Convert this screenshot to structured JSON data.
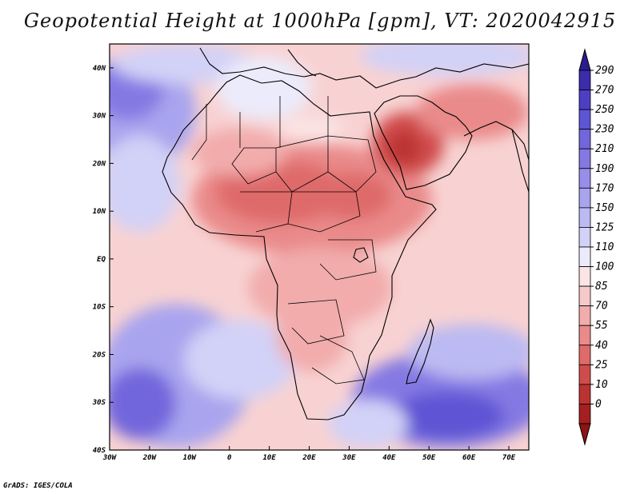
{
  "title": "Geopotential Height at 1000hPa [gpm], VT: 2020042915",
  "footer": "GrADS: IGES/COLA",
  "map": {
    "lon_range": [
      -30,
      75
    ],
    "lat_range": [
      -40,
      45
    ],
    "x_ticks": [
      "30W",
      "20W",
      "10W",
      "0",
      "10E",
      "20E",
      "30E",
      "40E",
      "50E",
      "60E",
      "70E"
    ],
    "y_ticks": [
      "40N",
      "30N",
      "20N",
      "10N",
      "EQ",
      "10S",
      "20S",
      "30S",
      "40S"
    ]
  },
  "colorbar": {
    "labels": [
      "290",
      "270",
      "250",
      "230",
      "210",
      "190",
      "170",
      "150",
      "125",
      "110",
      "100",
      "85",
      "70",
      "55",
      "40",
      "25",
      "10",
      "0"
    ],
    "colors": [
      "#3a2cab",
      "#4d3fc4",
      "#5e55d4",
      "#7266dc",
      "#8479e3",
      "#968ee9",
      "#a9a4ee",
      "#bcbaf2",
      "#d2d1f7",
      "#ecebfb",
      "#fbe4e4",
      "#f7caca",
      "#f2acac",
      "#ea8a8a",
      "#df6a6a",
      "#d04c4c",
      "#bb3232",
      "#a41f1f"
    ]
  }
}
